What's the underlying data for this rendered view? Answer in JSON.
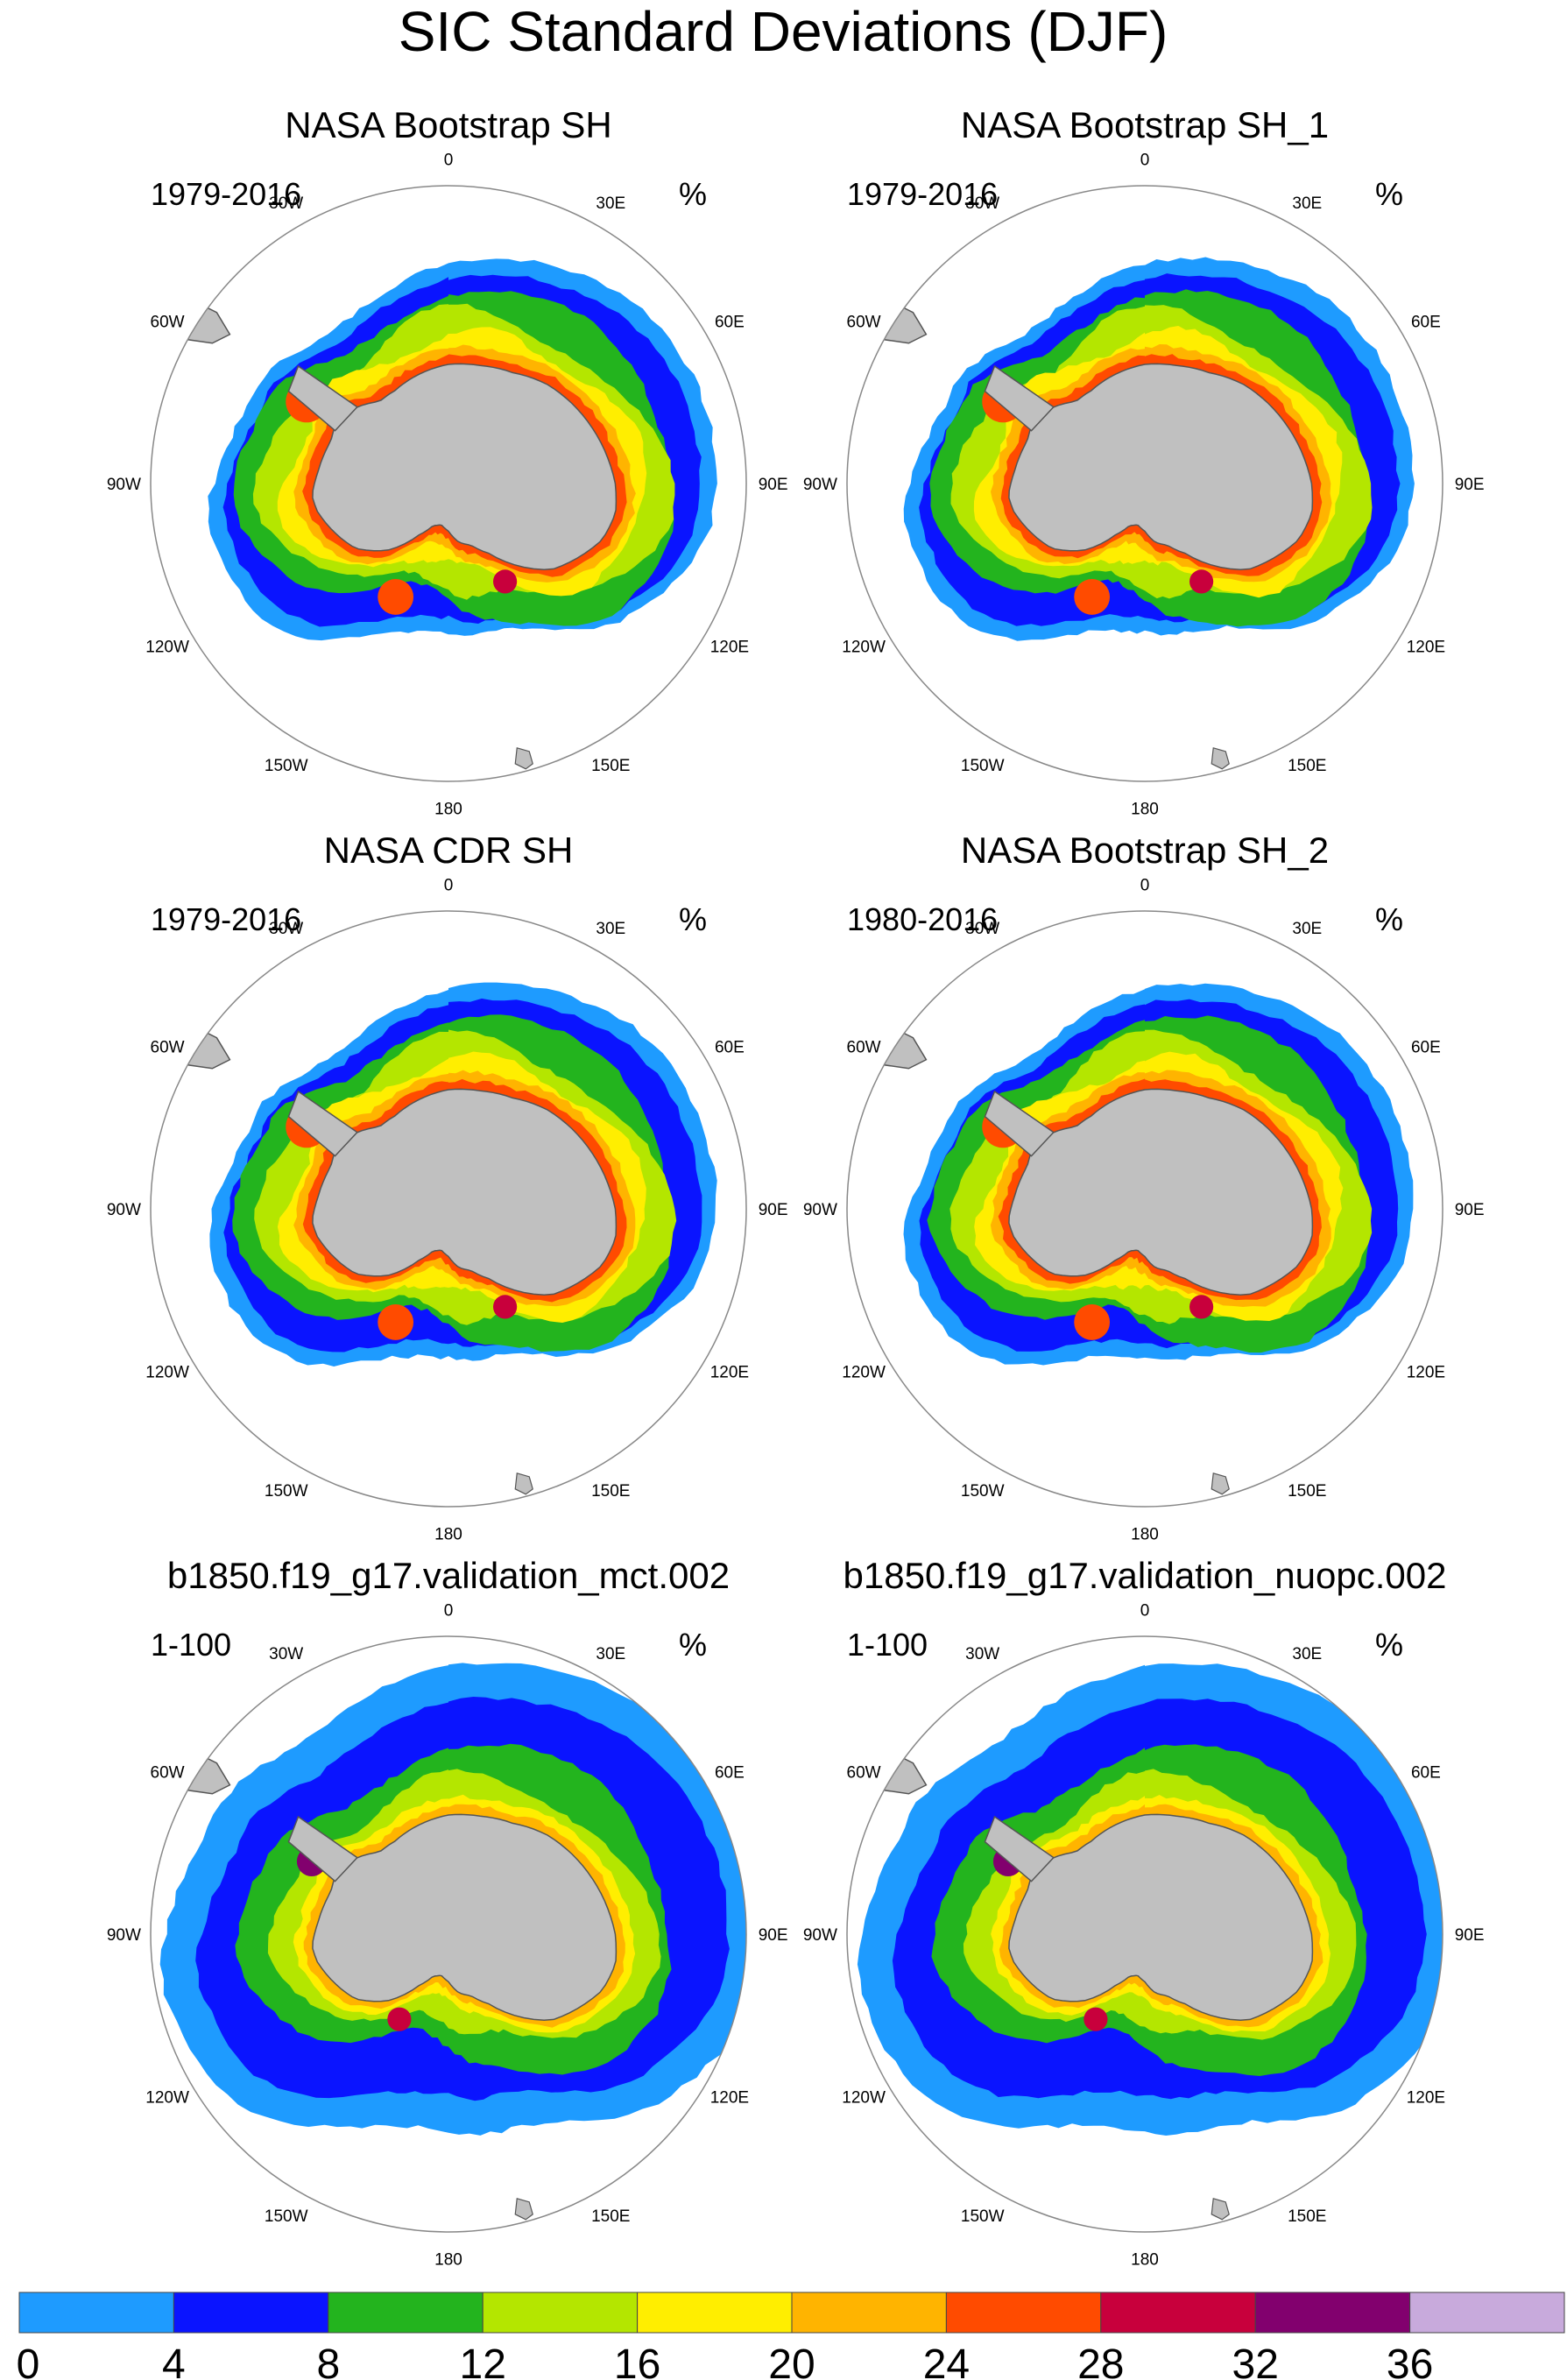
{
  "title": "SIC Standard Deviations (DJF)",
  "units": "%",
  "longitude_labels": [
    "0",
    "30E",
    "60E",
    "90E",
    "120E",
    "150E",
    "180",
    "150W",
    "120W",
    "90W",
    "60W",
    "30W"
  ],
  "colors": {
    "ocean_bg": "#ffffff",
    "land": "#c0c0c0",
    "land_outline": "#555555",
    "circle": "#888888"
  },
  "panels": [
    {
      "title": "NASA Bootstrap SH",
      "period": "1979-2016",
      "units": "%",
      "style": "obs"
    },
    {
      "title": "NASA Bootstrap SH_1",
      "period": "1979-2016",
      "units": "%",
      "style": "obs"
    },
    {
      "title": "NASA CDR SH",
      "period": "1979-2016",
      "units": "%",
      "style": "obs"
    },
    {
      "title": "NASA Bootstrap SH_2",
      "period": "1980-2016",
      "units": "%",
      "style": "obs"
    },
    {
      "title": "b1850.f19_g17.validation_mct.002",
      "period": "1-100",
      "units": "%",
      "style": "model"
    },
    {
      "title": "b1850.f19_g17.validation_nuopc.002",
      "period": "1-100",
      "units": "%",
      "style": "model"
    }
  ],
  "colorbar": {
    "ticks": [
      "0",
      "4",
      "8",
      "12",
      "16",
      "20",
      "24",
      "28",
      "32",
      "36"
    ],
    "colors": [
      "#1e9bff",
      "#0a14ff",
      "#23b41e",
      "#b4e600",
      "#ffee00",
      "#ffb400",
      "#ff4b00",
      "#c8003c",
      "#82006e",
      "#c8aadc"
    ]
  }
}
